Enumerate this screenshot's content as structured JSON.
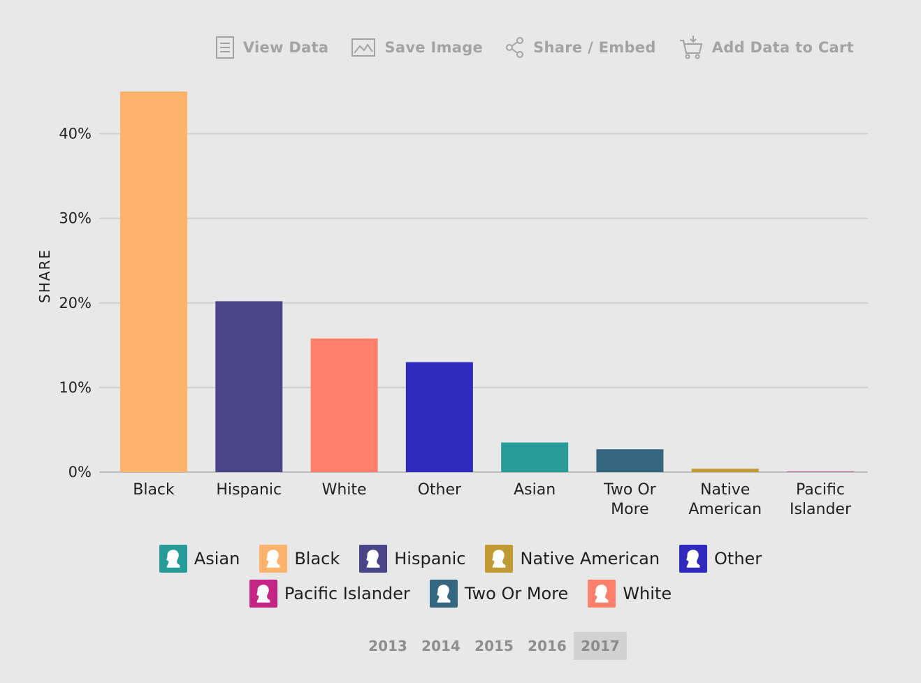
{
  "toolbar": {
    "view_data": "View Data",
    "save_image": "Save Image",
    "share_embed": "Share / Embed",
    "add_to_cart": "Add Data to Cart"
  },
  "chart_data": {
    "type": "bar",
    "ylabel": "SHARE",
    "ylim": [
      0,
      45
    ],
    "yticks": [
      0,
      10,
      20,
      30,
      40
    ],
    "ytick_labels": [
      "0%",
      "10%",
      "20%",
      "30%",
      "40%"
    ],
    "grid": true,
    "categories": [
      "Black",
      "Hispanic",
      "White",
      "Other",
      "Asian",
      "Two Or More",
      "Native American",
      "Pacific Islander"
    ],
    "category_lines": [
      [
        "Black"
      ],
      [
        "Hispanic"
      ],
      [
        "White"
      ],
      [
        "Other"
      ],
      [
        "Asian"
      ],
      [
        "Two Or",
        "More"
      ],
      [
        "Native",
        "American"
      ],
      [
        "Pacific",
        "Islander"
      ]
    ],
    "values": [
      45.0,
      20.2,
      15.8,
      13.0,
      3.5,
      2.7,
      0.4,
      0.05
    ],
    "colors": [
      "#fdb36b",
      "#4a4488",
      "#ff806a",
      "#2f29bc",
      "#279b98",
      "#34667f",
      "#c09a32",
      "#c42484"
    ]
  },
  "legend": [
    [
      {
        "label": "Asian",
        "color": "#279b98"
      },
      {
        "label": "Black",
        "color": "#fdb36b"
      },
      {
        "label": "Hispanic",
        "color": "#4a4488"
      },
      {
        "label": "Native American",
        "color": "#c09a32"
      },
      {
        "label": "Other",
        "color": "#2f29bc"
      }
    ],
    [
      {
        "label": "Pacific Islander",
        "color": "#c42484"
      },
      {
        "label": "Two Or More",
        "color": "#34667f"
      },
      {
        "label": "White",
        "color": "#ff806a"
      }
    ]
  ],
  "legend_icon": "person-head-icon",
  "years": [
    "2013",
    "2014",
    "2015",
    "2016",
    "2017"
  ],
  "active_year": "2017"
}
